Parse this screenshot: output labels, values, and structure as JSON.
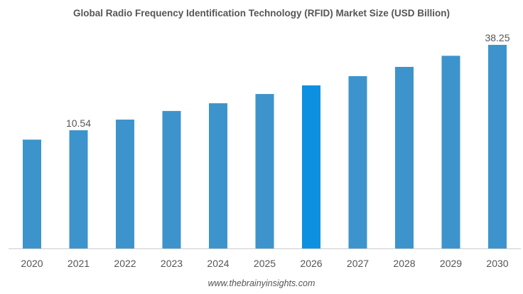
{
  "chart_data": {
    "type": "bar",
    "title": "Global Radio Frequency Identification Technology (RFID) Market Size (USD Billion)",
    "categories": [
      "2020",
      "2021",
      "2022",
      "2023",
      "2024",
      "2025",
      "2026",
      "2027",
      "2028",
      "2029",
      "2030"
    ],
    "values": [
      7.5,
      10.54,
      14.0,
      16.8,
      19.3,
      22.3,
      25.1,
      28.1,
      31.1,
      34.7,
      38.25
    ],
    "data_labels": {
      "2021": "10.54",
      "2030": "38.25"
    },
    "ylim": [
      -27.8,
      38.25
    ],
    "xlabel": "",
    "ylabel": "",
    "grid": false,
    "colors": {
      "bar": "#3d94cc",
      "highlight": "#0e90e0",
      "highlight_category": "2026",
      "axis": "#cccccc"
    }
  },
  "footer": "www.thebrainyinsights.com"
}
